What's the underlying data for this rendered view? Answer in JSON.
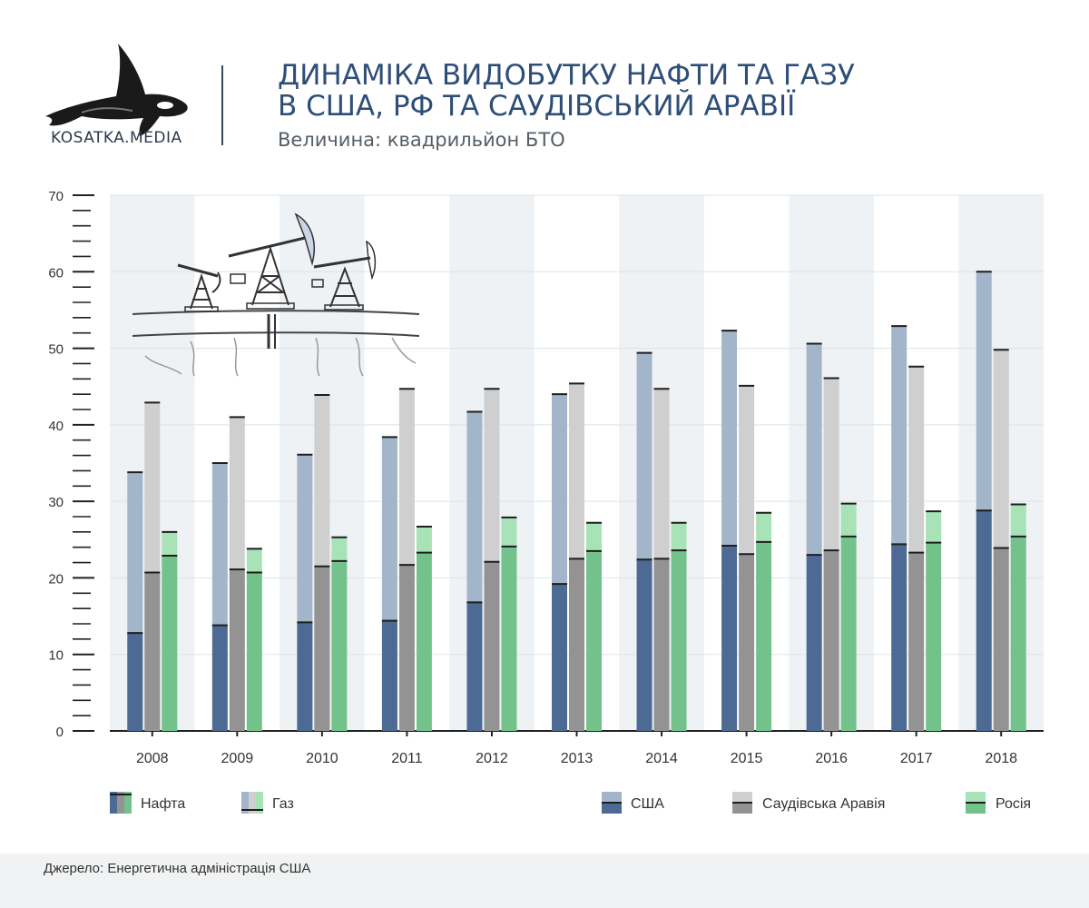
{
  "header": {
    "logo_text": "KOSATKA.MEDIA",
    "title_line1": "ДИНАМІКА ВИДОБУТКУ НАФТИ ТА ГАЗУ",
    "title_line2": "В США, РФ ТА САУДІВСЬКИЙ АРАВІЇ",
    "subtitle": "Величина: квадрильйон БТО"
  },
  "source": "Джерело: Енергетична адміністрація США",
  "legend": {
    "oil": "Нафта",
    "gas": "Газ"
  },
  "colors": {
    "usa_oil": "#4c6a93",
    "usa_gas": "#a3b5ca",
    "saudi_oil": "#939393",
    "saudi_gas": "#cfcfcf",
    "russia_oil": "#74c28b",
    "russia_gas": "#a8e2b7",
    "band": "#eef2f5",
    "cap": "#1e1e1e"
  },
  "chart_data": {
    "type": "bar",
    "stacked": true,
    "title": "ДИНАМІКА ВИДОБУТКУ НАФТИ ТА ГАЗУ В США, РФ ТА САУДІВСЬКИЙ АРАВІЇ",
    "ylabel": "Величина: квадрильйон БТО",
    "ylim": [
      0,
      70
    ],
    "yticks": [
      0,
      10,
      20,
      30,
      40,
      50,
      60,
      70
    ],
    "grid": true,
    "legend_position": "bottom",
    "categories": [
      "2008",
      "2009",
      "2010",
      "2011",
      "2012",
      "2013",
      "2014",
      "2015",
      "2016",
      "2017",
      "2018"
    ],
    "series": [
      {
        "name": "США",
        "oil": [
          12.8,
          13.8,
          14.2,
          14.4,
          16.8,
          19.2,
          22.4,
          24.2,
          23.0,
          24.4,
          28.8
        ],
        "total": [
          33.8,
          35.0,
          36.1,
          38.4,
          41.7,
          44.0,
          49.4,
          52.3,
          50.6,
          52.9,
          60.0
        ]
      },
      {
        "name": "Саудівська Аравія",
        "oil": [
          20.7,
          21.1,
          21.5,
          21.7,
          22.1,
          22.5,
          22.5,
          23.1,
          23.6,
          23.3,
          23.9
        ],
        "total": [
          42.9,
          41.0,
          43.9,
          44.7,
          44.7,
          45.4,
          44.7,
          45.1,
          46.1,
          47.6,
          49.8
        ]
      },
      {
        "name": "Росія",
        "oil": [
          22.9,
          20.7,
          22.2,
          23.3,
          24.1,
          23.5,
          23.6,
          24.7,
          25.4,
          24.6,
          25.4
        ],
        "total": [
          26.0,
          23.8,
          25.3,
          26.7,
          27.9,
          27.2,
          27.2,
          28.5,
          29.7,
          28.7,
          29.6
        ]
      }
    ]
  }
}
